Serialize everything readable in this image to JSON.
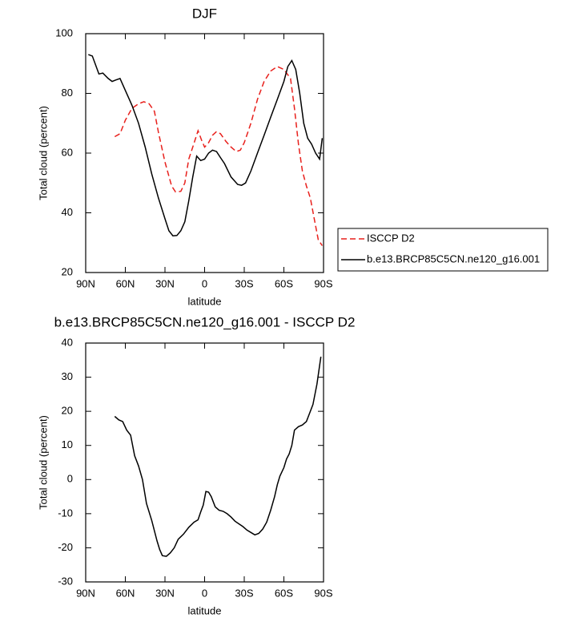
{
  "chart_data": [
    {
      "type": "line",
      "title": "DJF",
      "x_label": "latitude",
      "y_label": "Total cloud (percent)",
      "xlim": [
        90,
        -90
      ],
      "xticks": [
        {
          "value": 90,
          "label": "90N"
        },
        {
          "value": 60,
          "label": "60N"
        },
        {
          "value": 30,
          "label": "30N"
        },
        0,
        {
          "value": -30,
          "label": "30S"
        },
        {
          "value": -60,
          "label": "60S"
        },
        {
          "value": -90,
          "label": "90S"
        }
      ],
      "ylim": [
        20,
        100
      ],
      "yticks": [
        20,
        40,
        60,
        80,
        100
      ],
      "series": [
        {
          "name": "ISCCP D2",
          "color": "#e8201c",
          "dashed": true,
          "x": [
            68,
            64,
            60,
            55,
            50,
            46,
            42,
            38,
            35,
            30,
            25,
            22,
            18,
            15,
            12,
            9,
            5,
            2,
            0,
            -3,
            -6,
            -9,
            -12,
            -16,
            -20,
            -24,
            -27,
            -30,
            -35,
            -40,
            -45,
            -50,
            -55,
            -60,
            -65,
            -68,
            -71,
            -74,
            -77,
            -80,
            -83,
            -86,
            -89
          ],
          "values": [
            65.5,
            66.5,
            71,
            75,
            76.5,
            77.2,
            76.5,
            74,
            67,
            57,
            49,
            47,
            47.2,
            50,
            58,
            62,
            67.5,
            64,
            62,
            63.5,
            66,
            67.2,
            66.5,
            64,
            62,
            60.5,
            61,
            63.5,
            70,
            78,
            84,
            87.5,
            89,
            88,
            85,
            75,
            63,
            54,
            49,
            45,
            38,
            31,
            29
          ]
        },
        {
          "name": "b.e13.BRCP85C5CN.ne120_g16.001",
          "color": "#000000",
          "dashed": false,
          "x": [
            88,
            85,
            80,
            77,
            73,
            70,
            67,
            64,
            60,
            55,
            50,
            45,
            40,
            35,
            30,
            27,
            24,
            21,
            18,
            15,
            12,
            9,
            6,
            3,
            0,
            -3,
            -6,
            -9,
            -12,
            -15,
            -20,
            -25,
            -28,
            -31,
            -35,
            -40,
            -45,
            -50,
            -55,
            -60,
            -63,
            -66,
            -69,
            -72,
            -75,
            -78,
            -81,
            -84,
            -87,
            -89
          ],
          "values": [
            93,
            92.5,
            86.5,
            86.8,
            85,
            84,
            84.5,
            85,
            81,
            76,
            70,
            62,
            53,
            45,
            38,
            34,
            32.3,
            32.4,
            34,
            37,
            44,
            52,
            59,
            57.5,
            58,
            60,
            61,
            60.5,
            58.5,
            56.5,
            52,
            49.5,
            49.2,
            50,
            54,
            60,
            66,
            72,
            78,
            84,
            89,
            91,
            88,
            80,
            70,
            65,
            63,
            60,
            58,
            65
          ]
        }
      ]
    },
    {
      "type": "line",
      "title": "b.e13.BRCP85C5CN.ne120_g16.001 - ISCCP D2",
      "x_label": "latitude",
      "y_label": "Total cloud (percent)",
      "xlim": [
        90,
        -90
      ],
      "xticks": [
        {
          "value": 90,
          "label": "90N"
        },
        {
          "value": 60,
          "label": "60N"
        },
        {
          "value": 30,
          "label": "30N"
        },
        0,
        {
          "value": -30,
          "label": "30S"
        },
        {
          "value": -60,
          "label": "60S"
        },
        {
          "value": -90,
          "label": "90S"
        }
      ],
      "ylim": [
        -30,
        40
      ],
      "yticks": [
        -30,
        -20,
        -10,
        0,
        10,
        20,
        30,
        40
      ],
      "series": [
        {
          "color": "#000000",
          "dashed": false,
          "x": [
            68,
            65,
            62,
            59,
            56,
            53,
            50,
            47,
            44,
            40,
            36,
            34,
            32,
            29,
            26,
            23,
            20,
            16,
            12,
            8,
            5,
            3,
            1,
            -1,
            -3,
            -5,
            -8,
            -11,
            -14,
            -17,
            -20,
            -23,
            -26,
            -29,
            -32,
            -35,
            -38,
            -41,
            -44,
            -47,
            -50,
            -53,
            -55,
            -57,
            -60,
            -62,
            -64,
            -66,
            -68,
            -71,
            -74,
            -77,
            -79,
            -82,
            -85,
            -88
          ],
          "values": [
            18.5,
            17.5,
            17,
            14.5,
            13,
            7,
            4,
            0,
            -7,
            -12,
            -18,
            -20.5,
            -22.3,
            -22.5,
            -21.5,
            -20,
            -17.5,
            -16,
            -14,
            -12.5,
            -11.8,
            -9.5,
            -7.5,
            -3.5,
            -3.7,
            -5,
            -8,
            -9,
            -9.3,
            -10,
            -11,
            -12.2,
            -13,
            -13.8,
            -14.8,
            -15.5,
            -16.2,
            -15.8,
            -14.5,
            -12.5,
            -9,
            -5,
            -1.5,
            1,
            3.5,
            6,
            7.5,
            10,
            14.5,
            15.5,
            16,
            17,
            19,
            22,
            28,
            36
          ]
        }
      ]
    }
  ]
}
